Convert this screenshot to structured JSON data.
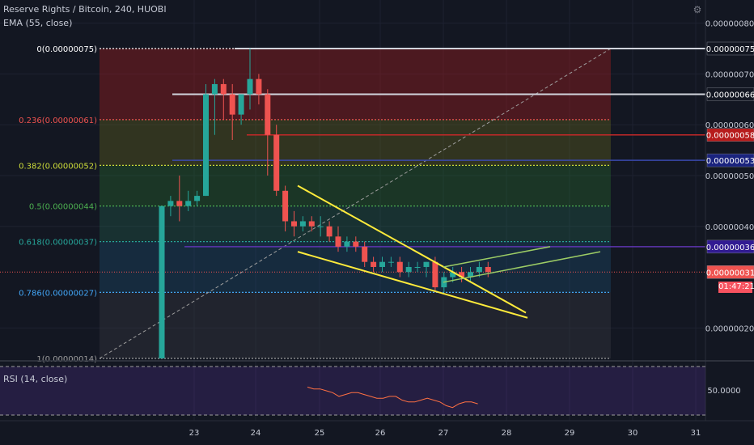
{
  "header": {
    "title": "Reserve Rights / Bitcoin, 240, HUOBI",
    "ema": "EMA (55, close)",
    "rsi": "RSI (14, close)"
  },
  "countdown": "01:47:21",
  "colors": {
    "up": "#26a69a",
    "down": "#ef5350",
    "background": "#131722",
    "triangle": "#ffeb3b",
    "channel": "#9ccc65",
    "rsi_line": "#ff7043"
  },
  "chart_data": {
    "type": "candlestick",
    "x": [
      "23",
      "24",
      "25",
      "26",
      "27",
      "28",
      "29",
      "30",
      "31"
    ],
    "ylim": [
      1.4e-07,
      8e-07
    ],
    "yticks": [
      "0.00000080",
      "0.00000070",
      "0.00000060",
      "0.00000050",
      "0.00000040",
      "0.00000020"
    ],
    "price_labels": [
      {
        "text": "0.00000075",
        "color": "#ffffff",
        "bg": "#131722"
      },
      {
        "text": "0.00000066",
        "color": "#ffffff",
        "bg": "#131722"
      },
      {
        "text": "0.00000058",
        "color": "#ffffff",
        "bg": "#b71c1c"
      },
      {
        "text": "0.00000053",
        "color": "#ffffff",
        "bg": "#1a237e"
      },
      {
        "text": "0.00000036",
        "color": "#ffffff",
        "bg": "#311b92"
      },
      {
        "text": "0.00000031",
        "color": "#ffffff",
        "bg": "#ef5350"
      }
    ],
    "fib_levels": [
      {
        "label": "0(0.00000075)",
        "color": "#ffffff"
      },
      {
        "label": "0.236(0.00000061)",
        "color": "#ef5350"
      },
      {
        "label": "0.382(0.00000052)",
        "color": "#cddc39"
      },
      {
        "label": "0.5(0.00000044)",
        "color": "#4caf50"
      },
      {
        "label": "0.618(0.00000037)",
        "color": "#26a69a"
      },
      {
        "label": "0.786(0.00000027)",
        "color": "#42a5f5"
      },
      {
        "label": "1(0.00000014)",
        "color": "#9e9e9e"
      }
    ],
    "candles": [
      [
        1.4e-07,
        4.4e-07,
        1.4e-07,
        4.4e-07
      ],
      [
        4.4e-07,
        4.6e-07,
        4.2e-07,
        4.5e-07
      ],
      [
        4.5e-07,
        5e-07,
        4.1e-07,
        4.4e-07
      ],
      [
        4.4e-07,
        4.7e-07,
        4.3e-07,
        4.5e-07
      ],
      [
        4.5e-07,
        4.7e-07,
        4.4e-07,
        4.6e-07
      ],
      [
        4.6e-07,
        6.8e-07,
        4.6e-07,
        6.6e-07
      ],
      [
        6.6e-07,
        6.9e-07,
        5.8e-07,
        6.8e-07
      ],
      [
        6.8e-07,
        6.9e-07,
        6.1e-07,
        6.6e-07
      ],
      [
        6.6e-07,
        6.8e-07,
        5.7e-07,
        6.2e-07
      ],
      [
        6.2e-07,
        6.6e-07,
        6e-07,
        6.6e-07
      ],
      [
        6.6e-07,
        7.5e-07,
        6.3e-07,
        6.9e-07
      ],
      [
        6.9e-07,
        7e-07,
        6.4e-07,
        6.6e-07
      ],
      [
        6.6e-07,
        6.7e-07,
        5e-07,
        5.8e-07
      ],
      [
        5.8e-07,
        6e-07,
        4.6e-07,
        4.7e-07
      ],
      [
        4.7e-07,
        4.8e-07,
        3.9e-07,
        4.1e-07
      ],
      [
        4.1e-07,
        4.3e-07,
        3.8e-07,
        4e-07
      ],
      [
        4e-07,
        4.2e-07,
        3.9e-07,
        4.1e-07
      ],
      [
        4.1e-07,
        4.2e-07,
        3.9e-07,
        4e-07
      ],
      [
        4e-07,
        4.2e-07,
        3.8e-07,
        4e-07
      ],
      [
        4e-07,
        4.1e-07,
        3.7e-07,
        3.8e-07
      ],
      [
        3.8e-07,
        4e-07,
        3.5e-07,
        3.6e-07
      ],
      [
        3.6e-07,
        3.8e-07,
        3.5e-07,
        3.7e-07
      ],
      [
        3.7e-07,
        3.8e-07,
        3.5e-07,
        3.6e-07
      ],
      [
        3.6e-07,
        3.7e-07,
        3.2e-07,
        3.3e-07
      ],
      [
        3.3e-07,
        3.4e-07,
        3.1e-07,
        3.2e-07
      ],
      [
        3.2e-07,
        3.4e-07,
        3.1e-07,
        3.3e-07
      ],
      [
        3.3e-07,
        3.4e-07,
        3.2e-07,
        3.3e-07
      ],
      [
        3.3e-07,
        3.4e-07,
        3e-07,
        3.1e-07
      ],
      [
        3.1e-07,
        3.3e-07,
        3e-07,
        3.2e-07
      ],
      [
        3.2e-07,
        3.3e-07,
        3.1e-07,
        3.2e-07
      ],
      [
        3.2e-07,
        3.3e-07,
        3e-07,
        3.3e-07
      ],
      [
        3.3e-07,
        3.4e-07,
        2.7e-07,
        2.8e-07
      ],
      [
        2.8e-07,
        3.1e-07,
        2.7e-07,
        3e-07
      ],
      [
        3e-07,
        3.2e-07,
        2.9e-07,
        3.1e-07
      ],
      [
        3.1e-07,
        3.2e-07,
        2.9e-07,
        3e-07
      ],
      [
        3e-07,
        3.2e-07,
        2.9e-07,
        3.1e-07
      ],
      [
        3.1e-07,
        3.3e-07,
        3e-07,
        3.2e-07
      ],
      [
        3.2e-07,
        3.3e-07,
        3e-07,
        3.1e-07
      ]
    ],
    "rsi": {
      "level": "50.0000",
      "values": [
        52,
        51,
        51,
        50,
        49,
        47,
        48,
        49,
        49,
        48,
        47,
        46,
        46,
        47,
        47,
        45,
        44,
        44,
        45,
        46,
        45,
        44,
        42,
        41,
        43,
        44,
        44,
        43
      ]
    }
  }
}
